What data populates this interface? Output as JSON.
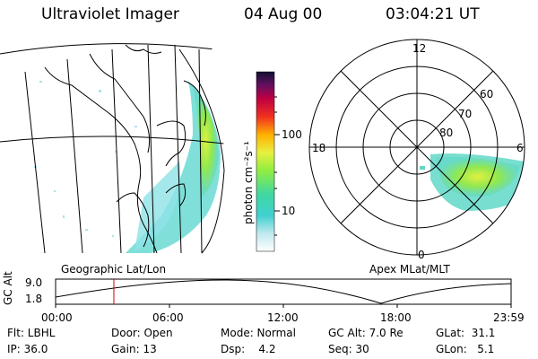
{
  "header": {
    "instrument": "Ultraviolet Imager",
    "date": "04 Aug 00",
    "time": "03:04:21 UT"
  },
  "colorbar": {
    "unit_label": "photon cm⁻²s⁻¹",
    "ticks": [
      "100",
      "10"
    ],
    "scale": "log"
  },
  "geo_panel": {
    "caption": "Geographic Lat/Lon"
  },
  "polar_panel": {
    "caption": "Apex MLat/MLT",
    "mlt_labels": {
      "top": "12",
      "left": "18",
      "right": "6",
      "bottom": "0"
    },
    "lat_labels": [
      "60",
      "70",
      "80"
    ]
  },
  "altitude_plot": {
    "ylabel": "GC Alt",
    "yticks": [
      "9.0",
      "1.8"
    ],
    "xticks": [
      "00:00",
      "06:00",
      "12:00",
      "18:00",
      "23:59"
    ],
    "current_time_hours": 3.07
  },
  "footer": {
    "row1": {
      "filter": "Flt: LBHL",
      "door": "Door: Open",
      "mode": "Mode: Normal",
      "gc_alt": "GC Alt: 7.0 Re",
      "glat": "GLat:  31.1"
    },
    "row2": {
      "ip": "IP: 36.0",
      "gain": "Gain: 13",
      "dsp": "Dsp:    4.2",
      "seq": "Seq: 30",
      "glon": "GLon:   5.1"
    }
  },
  "colors": {
    "background": "#ffffff",
    "foreground": "#000000",
    "current_time_marker": "#d00000"
  }
}
